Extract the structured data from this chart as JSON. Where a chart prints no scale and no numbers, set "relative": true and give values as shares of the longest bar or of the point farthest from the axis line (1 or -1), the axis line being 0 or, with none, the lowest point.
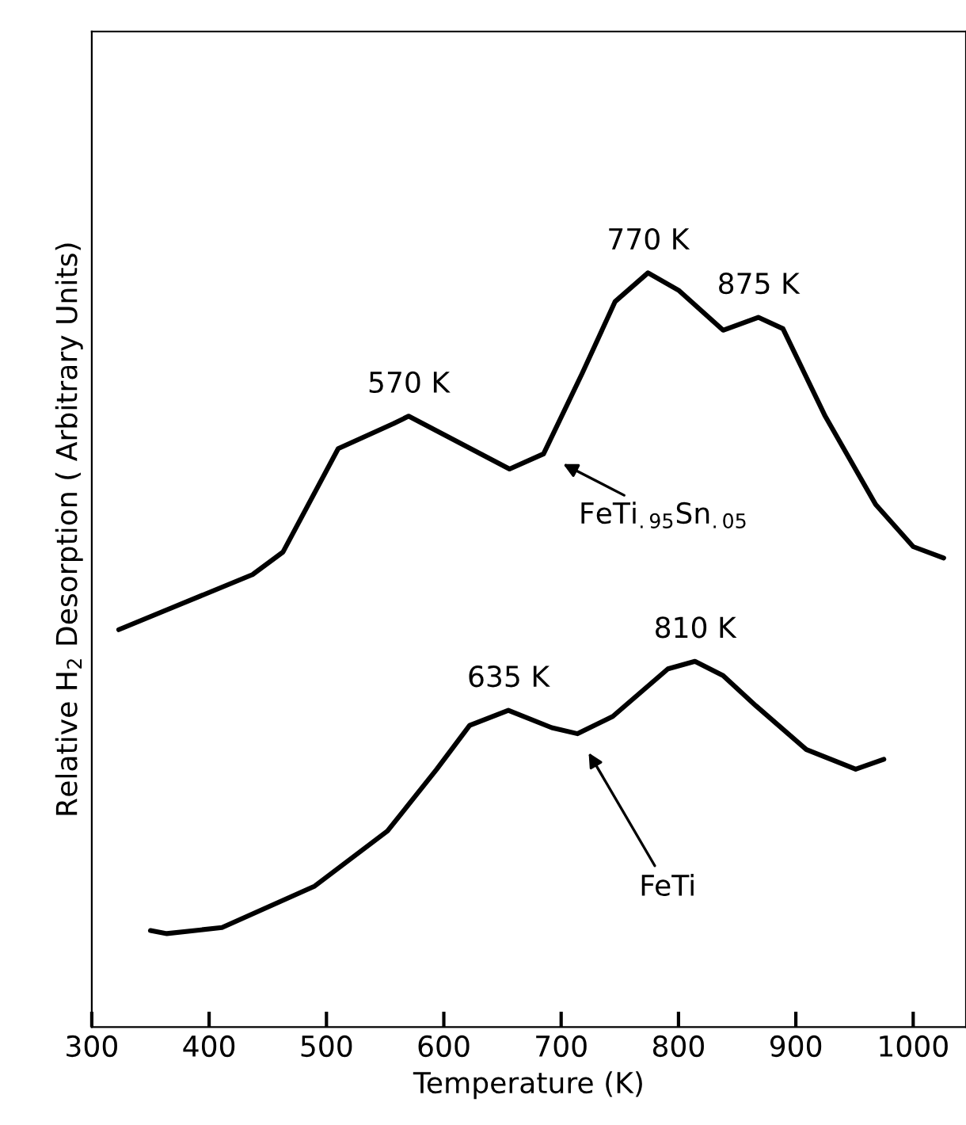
{
  "chart_data": {
    "type": "line",
    "relative": true,
    "xlabel": "Temperature (K)",
    "ylabel": "Relative H$_{2}$ Desorption ( Arbitrary Units)",
    "xlim": [
      300,
      1045
    ],
    "xticks": [
      300,
      400,
      500,
      600,
      700,
      800,
      900,
      1000
    ],
    "grid": false,
    "marker": "none",
    "line_style": "solid",
    "series": [
      {
        "color": "#000000",
        "x": [
          323,
          437,
          463,
          510,
          557,
          570,
          656,
          685,
          718,
          746,
          774,
          800,
          838,
          868,
          889,
          925,
          968,
          1000,
          1026
        ],
        "values": [
          0.527,
          0.6,
          0.63,
          0.767,
          0.8,
          0.81,
          0.74,
          0.76,
          0.867,
          0.962,
          1.0,
          0.977,
          0.924,
          0.941,
          0.926,
          0.81,
          0.693,
          0.637,
          0.622
        ]
      },
      {
        "color": "#000000",
        "x": [
          350,
          364,
          411,
          490,
          552,
          594,
          622,
          655,
          692,
          714,
          744,
          791,
          814,
          838,
          866,
          909,
          951,
          975
        ],
        "values": [
          0.128,
          0.124,
          0.132,
          0.187,
          0.26,
          0.342,
          0.4,
          0.42,
          0.397,
          0.389,
          0.412,
          0.475,
          0.485,
          0.466,
          0.426,
          0.368,
          0.342,
          0.355
        ]
      }
    ],
    "annotations": [
      {
        "text": "570 K",
        "x": 570,
        "y": 0.81
      },
      {
        "text": "770 K",
        "x": 774,
        "y": 1.0
      },
      {
        "text": "875 K",
        "x": 868,
        "y": 0.941
      },
      {
        "text": "635 K",
        "x": 655,
        "y": 0.42
      },
      {
        "text": "810 K",
        "x": 814,
        "y": 0.485
      },
      "FeTi$_{.95}$Sn$_{.05}$",
      "FeTi"
    ]
  }
}
